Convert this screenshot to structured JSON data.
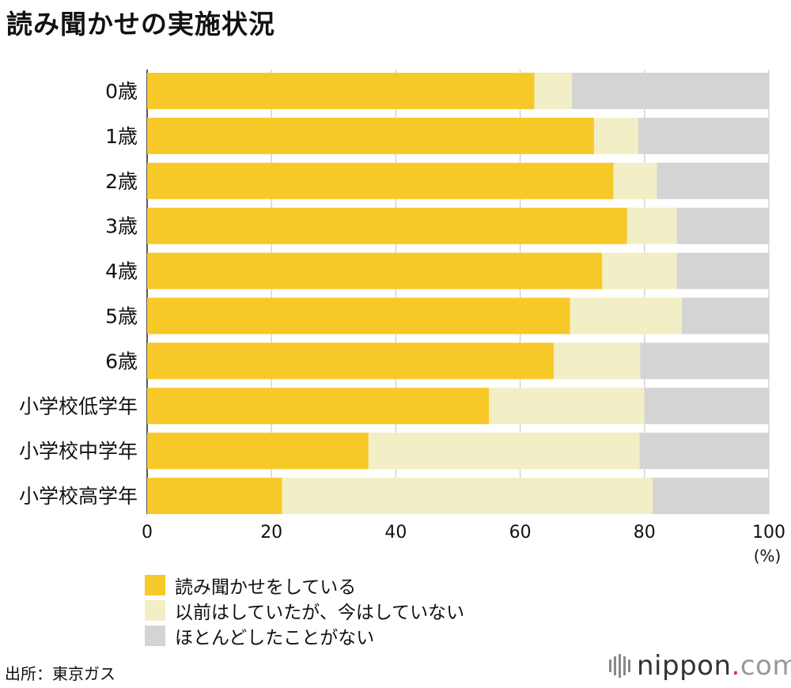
{
  "title": "読み聞かせの実施状況",
  "chart_data": {
    "type": "bar",
    "orientation": "horizontal",
    "stacked": true,
    "categories": [
      "0歳",
      "1歳",
      "2歳",
      "3歳",
      "4歳",
      "5歳",
      "6歳",
      "小学校低学年",
      "小学校中学年",
      "小学校高学年"
    ],
    "series": [
      {
        "name": "読み聞かせをしている",
        "color": "#f7c928",
        "values": [
          62.3,
          71.9,
          75.0,
          77.2,
          73.2,
          68.0,
          65.4,
          55.0,
          35.6,
          21.7
        ]
      },
      {
        "name": "以前はしていたが、今はしていない",
        "color": "#f2eec5",
        "values": [
          6.0,
          7.1,
          7.0,
          8.0,
          12.0,
          18.0,
          13.9,
          25.0,
          43.6,
          59.6
        ]
      },
      {
        "name": "ほとんどしたことがない",
        "color": "#d4d4d4",
        "values": [
          31.7,
          21.0,
          18.0,
          14.8,
          14.8,
          14.0,
          20.7,
          20.0,
          20.8,
          18.7
        ]
      }
    ],
    "xlim": [
      0,
      100
    ],
    "xticks": [
      "0",
      "20",
      "40",
      "60",
      "80",
      "100"
    ],
    "xunit": "(%)",
    "grid": true,
    "legend_position": "bottom-left"
  },
  "source": "出所：東京ガス",
  "logo": {
    "name": "nippon",
    "dot": ".",
    "suffix": "com"
  }
}
